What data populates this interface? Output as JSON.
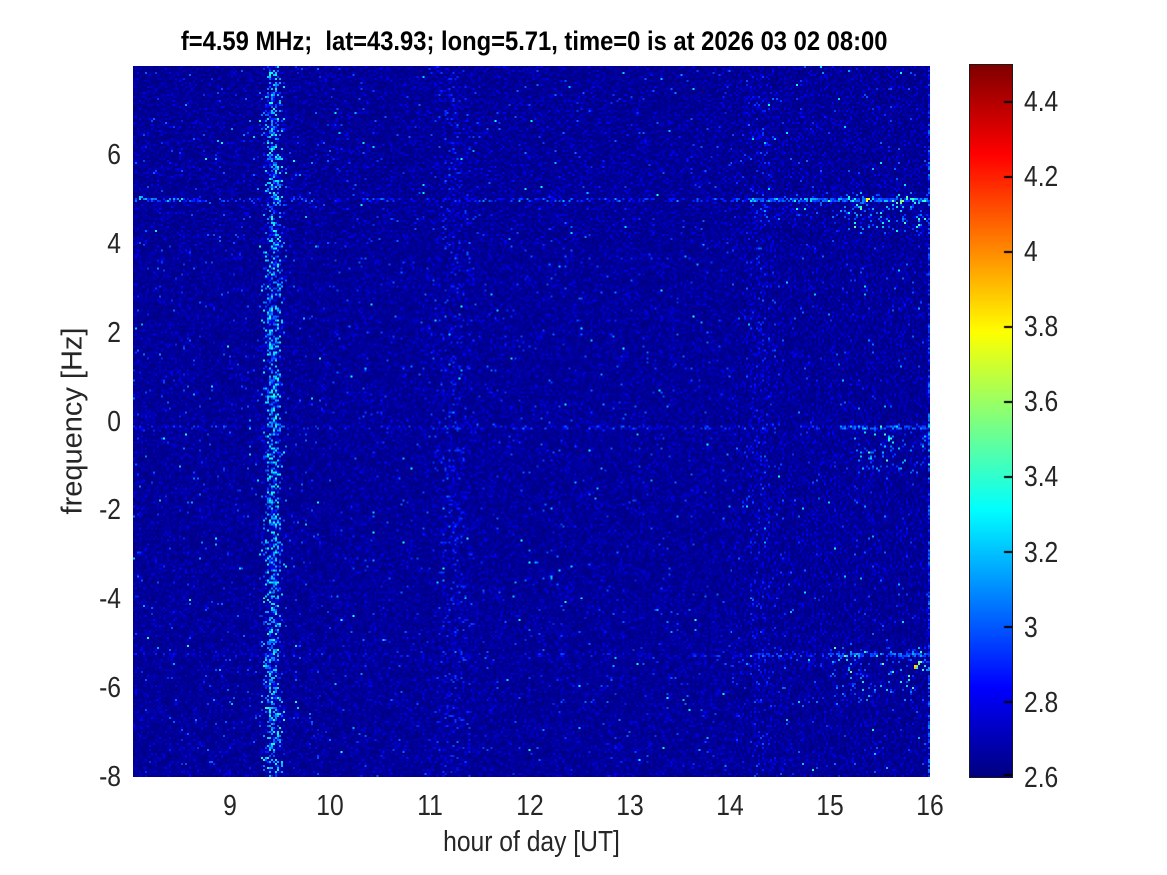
{
  "chart_data": {
    "type": "heatmap",
    "title": "f=4.59 MHz;  lat=43.93; long=5.71, time=0 is at 2026 03 02 08:00",
    "xlabel": "hour of day [UT]",
    "ylabel": "frequency [Hz]",
    "xlim": [
      8.03,
      16
    ],
    "ylim": [
      -8,
      8
    ],
    "xticks": [
      9,
      10,
      11,
      12,
      13,
      14,
      15,
      16
    ],
    "yticks": [
      6,
      4,
      2,
      0,
      -2,
      -4,
      -6,
      -8
    ],
    "grid": false,
    "colorbar": {
      "colormap": "jet",
      "min": 2.6,
      "max": 4.5,
      "ticks": [
        4.4,
        4.2,
        4,
        3.8,
        3.6,
        3.4,
        3.2,
        3,
        2.8,
        2.6
      ],
      "position": "right"
    },
    "background_value_range": [
      2.6,
      2.75
    ],
    "noise_seed": 1337,
    "features": {
      "stripes": [
        {
          "x": 9.43,
          "sigma": 0.05,
          "density": 0.6,
          "vmin": 2.78,
          "vmax": 3.35
        },
        {
          "x": 11.25,
          "sigma": 0.1,
          "density": 0.16,
          "vmin": 2.7,
          "vmax": 2.98
        },
        {
          "x": 14.3,
          "sigma": 0.08,
          "density": 0.13,
          "vmin": 2.7,
          "vmax": 2.95
        }
      ],
      "spectral_lines": [
        {
          "y": 5.0,
          "segments": [
            [
              8.03,
              8.65,
              0.55,
              2.88,
              3.35
            ],
            [
              8.65,
              14.2,
              0.3,
              2.82,
              3.18
            ],
            [
              14.2,
              16,
              0.7,
              2.9,
              3.55
            ]
          ]
        },
        {
          "y": -0.13,
          "segments": [
            [
              8.03,
              15.1,
              0.25,
              2.8,
              3.08
            ],
            [
              15.1,
              16,
              0.55,
              2.88,
              3.4
            ]
          ]
        },
        {
          "y": -5.25,
          "segments": [
            [
              8.03,
              13.6,
              0.12,
              2.78,
              3.0
            ],
            [
              13.6,
              15.0,
              0.3,
              2.84,
              3.22
            ],
            [
              15.0,
              16,
              0.6,
              2.9,
              3.5
            ]
          ]
        }
      ],
      "clusters": [
        [
          15.15,
          16,
          4.25,
          5.15,
          120,
          2.9,
          3.7
        ],
        [
          14.3,
          15.15,
          4.55,
          5.1,
          40,
          2.85,
          3.4
        ],
        [
          15.25,
          16,
          -1.15,
          -0.05,
          95,
          2.88,
          3.55
        ],
        [
          15.0,
          16,
          -6.3,
          -5.1,
          110,
          2.9,
          3.65
        ],
        [
          13.8,
          15.0,
          -5.55,
          -5.1,
          30,
          2.85,
          3.3
        ]
      ],
      "hotspots": [
        [
          15.85,
          -5.5,
          3.97
        ],
        [
          15.9,
          -5.42,
          3.6
        ],
        [
          15.38,
          5.02,
          3.8
        ],
        [
          15.72,
          4.97,
          3.65
        ],
        [
          15.6,
          -0.38,
          3.5
        ],
        [
          8.1,
          5.05,
          3.3
        ]
      ],
      "right_edge": {
        "density": 0.55,
        "vmin": 2.78,
        "vmax": 3.1
      }
    }
  }
}
